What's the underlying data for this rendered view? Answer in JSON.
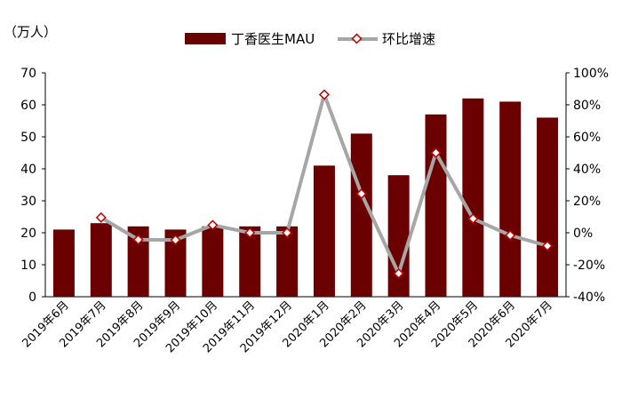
{
  "chart_data": {
    "type": "bar+line",
    "unit_label": "（万人）",
    "categories": [
      "2019年6月",
      "2019年7月",
      "2019年8月",
      "2019年9月",
      "2019年10月",
      "2019年11月",
      "2019年12月",
      "2020年1月",
      "2020年2月",
      "2020年3月",
      "2020年4月",
      "2020年5月",
      "2020年6月",
      "2020年7月"
    ],
    "series": [
      {
        "name": "丁香医生MAU",
        "type": "bar",
        "axis": "left",
        "color": "#6b0000",
        "values": [
          21,
          23,
          22,
          21,
          22,
          22,
          22,
          41,
          51,
          38,
          57,
          62,
          61,
          56
        ]
      },
      {
        "name": "环比增速",
        "type": "line",
        "axis": "right",
        "color": "#a6a6a6",
        "marker_color": "#c00000",
        "values": [
          null,
          9.5,
          -4.3,
          -4.5,
          4.8,
          0,
          0,
          86.4,
          24.4,
          -25.5,
          50,
          8.8,
          -1.6,
          -8.2
        ]
      }
    ],
    "left_axis": {
      "min": 0,
      "max": 70,
      "step": 10,
      "tick_labels": [
        "0",
        "10",
        "20",
        "30",
        "40",
        "50",
        "60",
        "70"
      ]
    },
    "right_axis": {
      "min": -40,
      "max": 100,
      "step": 20,
      "tick_labels": [
        "-40%",
        "-20%",
        "0%",
        "20%",
        "40%",
        "60%",
        "80%",
        "100%"
      ]
    },
    "legend": {
      "placement": "top-center",
      "entries": [
        "丁香医生MAU",
        "环比增速"
      ]
    },
    "grid": false
  }
}
